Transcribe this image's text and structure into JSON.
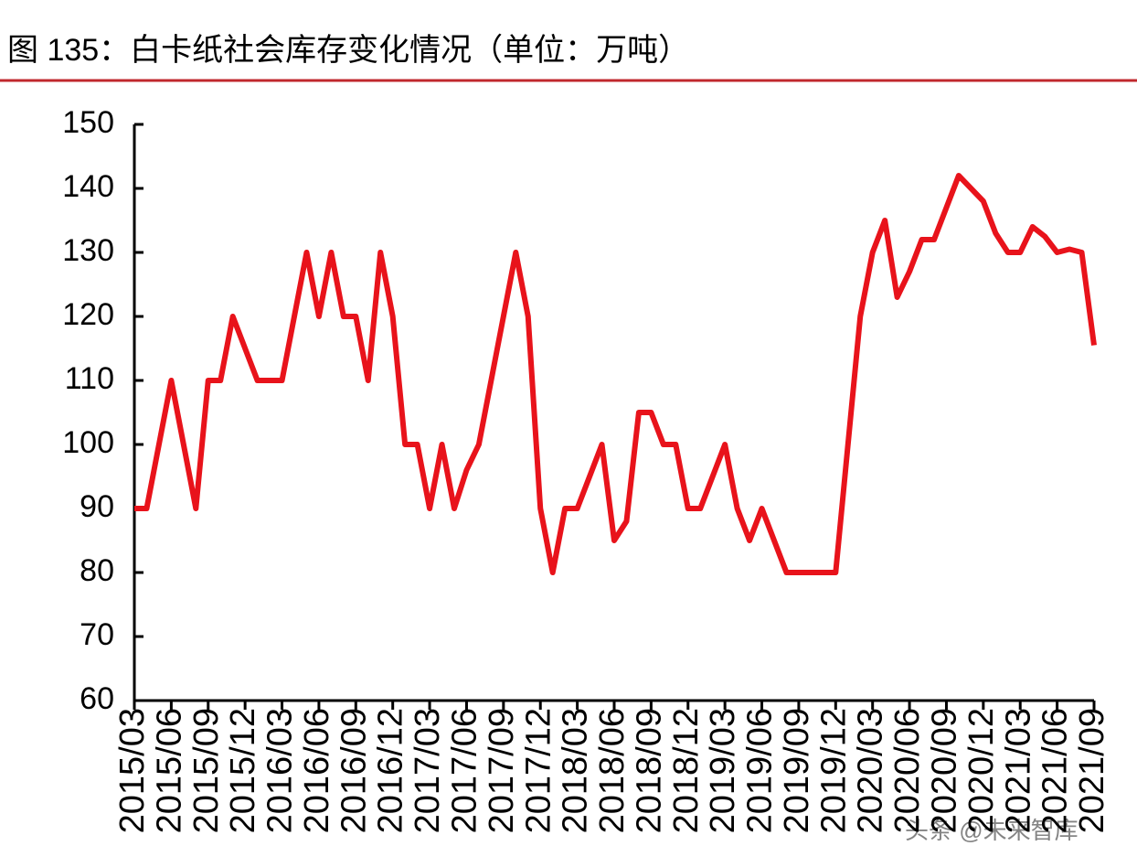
{
  "chart_data": {
    "type": "line",
    "title": "图 135：白卡纸社会库存变化情况（单位：万吨）",
    "watermark": "头条 @未来智库",
    "categories": [
      "2015/03",
      null,
      null,
      "2015/06",
      null,
      null,
      "2015/09",
      null,
      null,
      "2015/12",
      null,
      null,
      "2016/03",
      null,
      null,
      "2016/06",
      null,
      null,
      "2016/09",
      null,
      null,
      "2016/12",
      null,
      null,
      "2017/03",
      null,
      null,
      "2017/06",
      null,
      null,
      "2017/09",
      null,
      null,
      "2017/12",
      null,
      null,
      "2018/03",
      null,
      null,
      "2018/06",
      null,
      null,
      "2018/09",
      null,
      null,
      "2018/12",
      null,
      null,
      "2019/03",
      null,
      null,
      "2019/06",
      null,
      null,
      "2019/09",
      null,
      null,
      "2019/12",
      null,
      null,
      "2020/03",
      null,
      null,
      "2020/06",
      null,
      null,
      "2020/09",
      null,
      null,
      "2020/12",
      null,
      null,
      "2021/03",
      null,
      null,
      "2021/06",
      null,
      null,
      "2021/09"
    ],
    "series": [
      {
        "name": "白卡纸社会库存",
        "color": "#e8131b",
        "values": [
          90,
          90,
          100,
          110,
          100,
          90,
          110,
          110,
          120,
          115,
          110,
          110,
          110,
          120,
          130,
          120,
          130,
          120,
          120,
          110,
          130,
          120,
          100,
          100,
          90,
          100,
          90,
          96,
          100,
          110,
          120,
          130,
          120,
          90,
          80,
          90,
          90,
          95,
          100,
          85,
          88,
          105,
          105,
          100,
          100,
          90,
          90,
          95,
          100,
          90,
          85,
          90,
          85,
          80,
          80,
          80,
          80,
          80,
          100,
          120,
          130,
          135,
          123,
          127,
          132,
          132,
          137,
          142,
          140,
          138,
          133,
          130,
          130,
          134,
          132.5,
          130,
          130.5,
          130,
          115.5
        ]
      }
    ],
    "ylim": [
      60,
      150
    ],
    "yticks": [
      60,
      70,
      80,
      90,
      100,
      110,
      120,
      130,
      140,
      150
    ]
  }
}
